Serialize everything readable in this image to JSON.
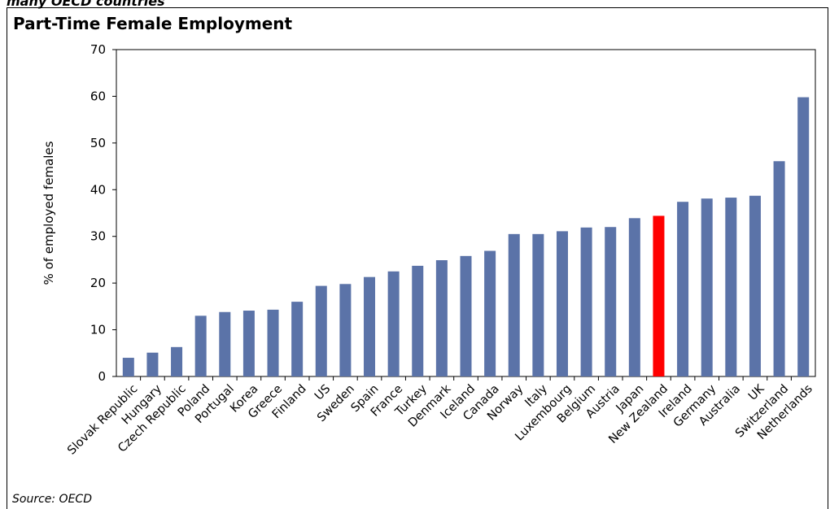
{
  "header": {
    "partial_text": "many OECD countries"
  },
  "source": "Source: OECD",
  "chart_data": {
    "type": "bar",
    "title": "Part-Time Female Employment",
    "xlabel": "",
    "ylabel": "% of employed females",
    "ylim": [
      0,
      70
    ],
    "yticks": [
      0,
      10,
      20,
      30,
      40,
      50,
      60,
      70
    ],
    "grid": false,
    "bar_color": "#5b73a8",
    "highlight_color": "#ff0000",
    "highlight_category": "New Zealand",
    "categories": [
      "Slovak Republic",
      "Hungary",
      "Czech Republic",
      "Poland",
      "Portugal",
      "Korea",
      "Greece",
      "Finland",
      "US",
      "Sweden",
      "Spain",
      "France",
      "Turkey",
      "Denmark",
      "Iceland",
      "Canada",
      "Norway",
      "Italy",
      "Luxembourg",
      "Belgium",
      "Austria",
      "Japan",
      "New Zealand",
      "Ireland",
      "Germany",
      "Australia",
      "UK",
      "Switzerland",
      "Netherlands"
    ],
    "values": [
      4.0,
      5.1,
      6.3,
      13.0,
      13.8,
      14.1,
      14.3,
      16.0,
      19.4,
      19.8,
      21.3,
      22.5,
      23.7,
      24.9,
      25.8,
      26.9,
      30.5,
      30.5,
      31.1,
      31.9,
      32.0,
      33.9,
      34.4,
      37.4,
      38.1,
      38.3,
      38.7,
      46.1,
      59.8
    ]
  }
}
